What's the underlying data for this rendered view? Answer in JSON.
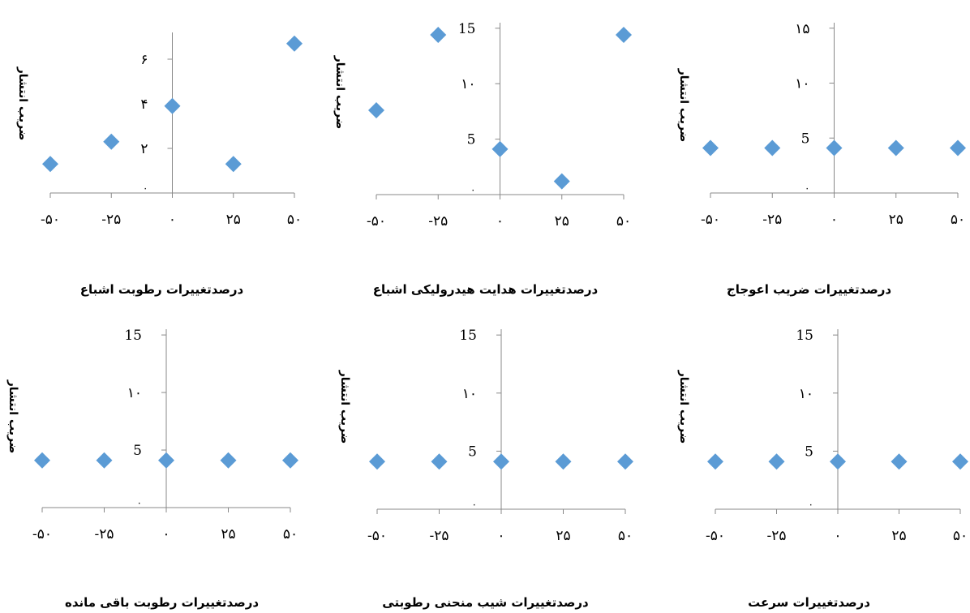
{
  "chart_data": [
    {
      "type": "scatter",
      "xlabel": "درصدتغییرات رطوبت اشباع",
      "ylabel": "ضریب انتشار",
      "x": [
        -50,
        -25,
        0,
        25,
        50
      ],
      "y": [
        1.3,
        2.3,
        3.9,
        1.3,
        6.7
      ],
      "xlim": [
        -50,
        50
      ],
      "ylim": [
        0,
        7.2
      ],
      "xticks": [
        -50,
        -25,
        0,
        25,
        50
      ],
      "xtick_labels": [
        "-۵۰",
        "-۲۵",
        "۰",
        "۲۵",
        "۵۰"
      ],
      "yticks": [
        0,
        2,
        4,
        6
      ],
      "ytick_labels": [
        "۰",
        "۲",
        "۴",
        "۶"
      ],
      "marker_color": "#5B9BD5",
      "grid": false
    },
    {
      "type": "scatter",
      "xlabel": "درصدتغییرات هدایت هیدرولیکی اشباع",
      "ylabel": "ضریب انتشار",
      "x": [
        -50,
        -25,
        0,
        25,
        50
      ],
      "y": [
        7.6,
        14.4,
        4.1,
        1.2,
        14.4
      ],
      "xlim": [
        -50,
        50
      ],
      "ylim": [
        0,
        15.5
      ],
      "xticks": [
        -50,
        -25,
        0,
        25,
        50
      ],
      "xtick_labels": [
        "-۵۰",
        "-۲۵",
        "۰",
        "۲۵",
        "۵۰"
      ],
      "yticks": [
        0,
        5,
        10,
        15
      ],
      "ytick_labels": [
        "۰",
        "5",
        "۱۰",
        "15"
      ],
      "marker_color": "#5B9BD5",
      "grid": false
    },
    {
      "type": "scatter",
      "xlabel": "درصدتغییرات ضریب اعوجاج",
      "ylabel": "ضریب انتشار",
      "x": [
        -50,
        -25,
        0,
        25,
        50
      ],
      "y": [
        4.1,
        4.1,
        4.1,
        4.1,
        4.1
      ],
      "xlim": [
        -50,
        50
      ],
      "ylim": [
        0,
        15.5
      ],
      "xticks": [
        -50,
        -25,
        0,
        25,
        50
      ],
      "xtick_labels": [
        "-۵۰",
        "-۲۵",
        "۰",
        "۲۵",
        "۵۰"
      ],
      "yticks": [
        0,
        5,
        10,
        15
      ],
      "ytick_labels": [
        "۰",
        "5",
        "۱۰",
        "۱۵"
      ],
      "marker_color": "#5B9BD5",
      "grid": false
    },
    {
      "type": "scatter",
      "xlabel": "درصدتغییرات رطوبت باقی مانده",
      "ylabel": "ضریب انتشار",
      "x": [
        -50,
        -25,
        0,
        25,
        50
      ],
      "y": [
        4.1,
        4.1,
        4.1,
        4.1,
        4.1
      ],
      "xlim": [
        -50,
        50
      ],
      "ylim": [
        0,
        15.5
      ],
      "xticks": [
        -50,
        -25,
        0,
        25,
        50
      ],
      "xtick_labels": [
        "-۵۰",
        "-۲۵",
        "۰",
        "۲۵",
        "۵۰"
      ],
      "yticks": [
        0,
        5,
        10,
        15
      ],
      "ytick_labels": [
        "۰",
        "5",
        "۱۰",
        "15"
      ],
      "marker_color": "#5B9BD5",
      "grid": false
    },
    {
      "type": "scatter",
      "xlabel": "درصدتغییرات شیب منحنی رطوبتی",
      "ylabel": "ضریب انتشار",
      "x": [
        -50,
        -25,
        0,
        25,
        50
      ],
      "y": [
        4.1,
        4.1,
        4.1,
        4.1,
        4.1
      ],
      "xlim": [
        -50,
        50
      ],
      "ylim": [
        0,
        15.5
      ],
      "xticks": [
        -50,
        -25,
        0,
        25,
        50
      ],
      "xtick_labels": [
        "-۵۰",
        "-۲۵",
        "۰",
        "۲۵",
        "۵۰"
      ],
      "yticks": [
        0,
        5,
        10,
        15
      ],
      "ytick_labels": [
        "۰",
        "5",
        "۱۰",
        "15"
      ],
      "marker_color": "#5B9BD5",
      "grid": false
    },
    {
      "type": "scatter",
      "xlabel": "درصدتغییرات سرعت",
      "ylabel": "ضریب انتشار",
      "x": [
        -50,
        -25,
        0,
        25,
        50
      ],
      "y": [
        4.1,
        4.1,
        4.1,
        4.1,
        4.1
      ],
      "xlim": [
        -50,
        50
      ],
      "ylim": [
        0,
        15.5
      ],
      "xticks": [
        -50,
        -25,
        0,
        25,
        50
      ],
      "xtick_labels": [
        "-۵۰",
        "-۲۵",
        "۰",
        "۲۵",
        "۵۰"
      ],
      "yticks": [
        0,
        5,
        10,
        15
      ],
      "ytick_labels": [
        "۰",
        "5",
        "۱۰",
        "15"
      ],
      "marker_color": "#5B9BD5",
      "grid": false
    }
  ]
}
